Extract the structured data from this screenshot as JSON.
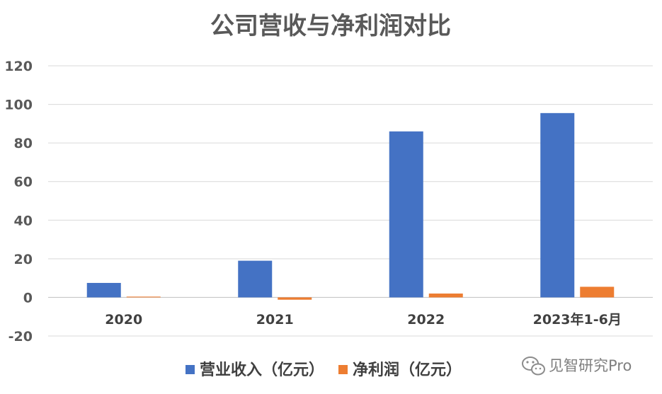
{
  "chart_data": {
    "type": "bar",
    "title": "公司营收与净利润对比",
    "categories": [
      "2020",
      "2021",
      "2022",
      "2023年1-6月"
    ],
    "series": [
      {
        "name": "营业收入（亿元）",
        "color": "#4472c4",
        "values": [
          7.5,
          19,
          86,
          95.5
        ]
      },
      {
        "name": "净利润（亿元）",
        "color": "#ed7d31",
        "values": [
          0.4,
          -1.2,
          2.0,
          5.5
        ]
      }
    ],
    "y_ticks": [
      "-20",
      "0",
      "20",
      "40",
      "60",
      "80",
      "100",
      "120"
    ],
    "ylim": [
      -20,
      120
    ],
    "grid": true,
    "legend_position": "bottom"
  },
  "watermark": {
    "text": "见智研究Pro",
    "icon": "wechat-icon"
  }
}
